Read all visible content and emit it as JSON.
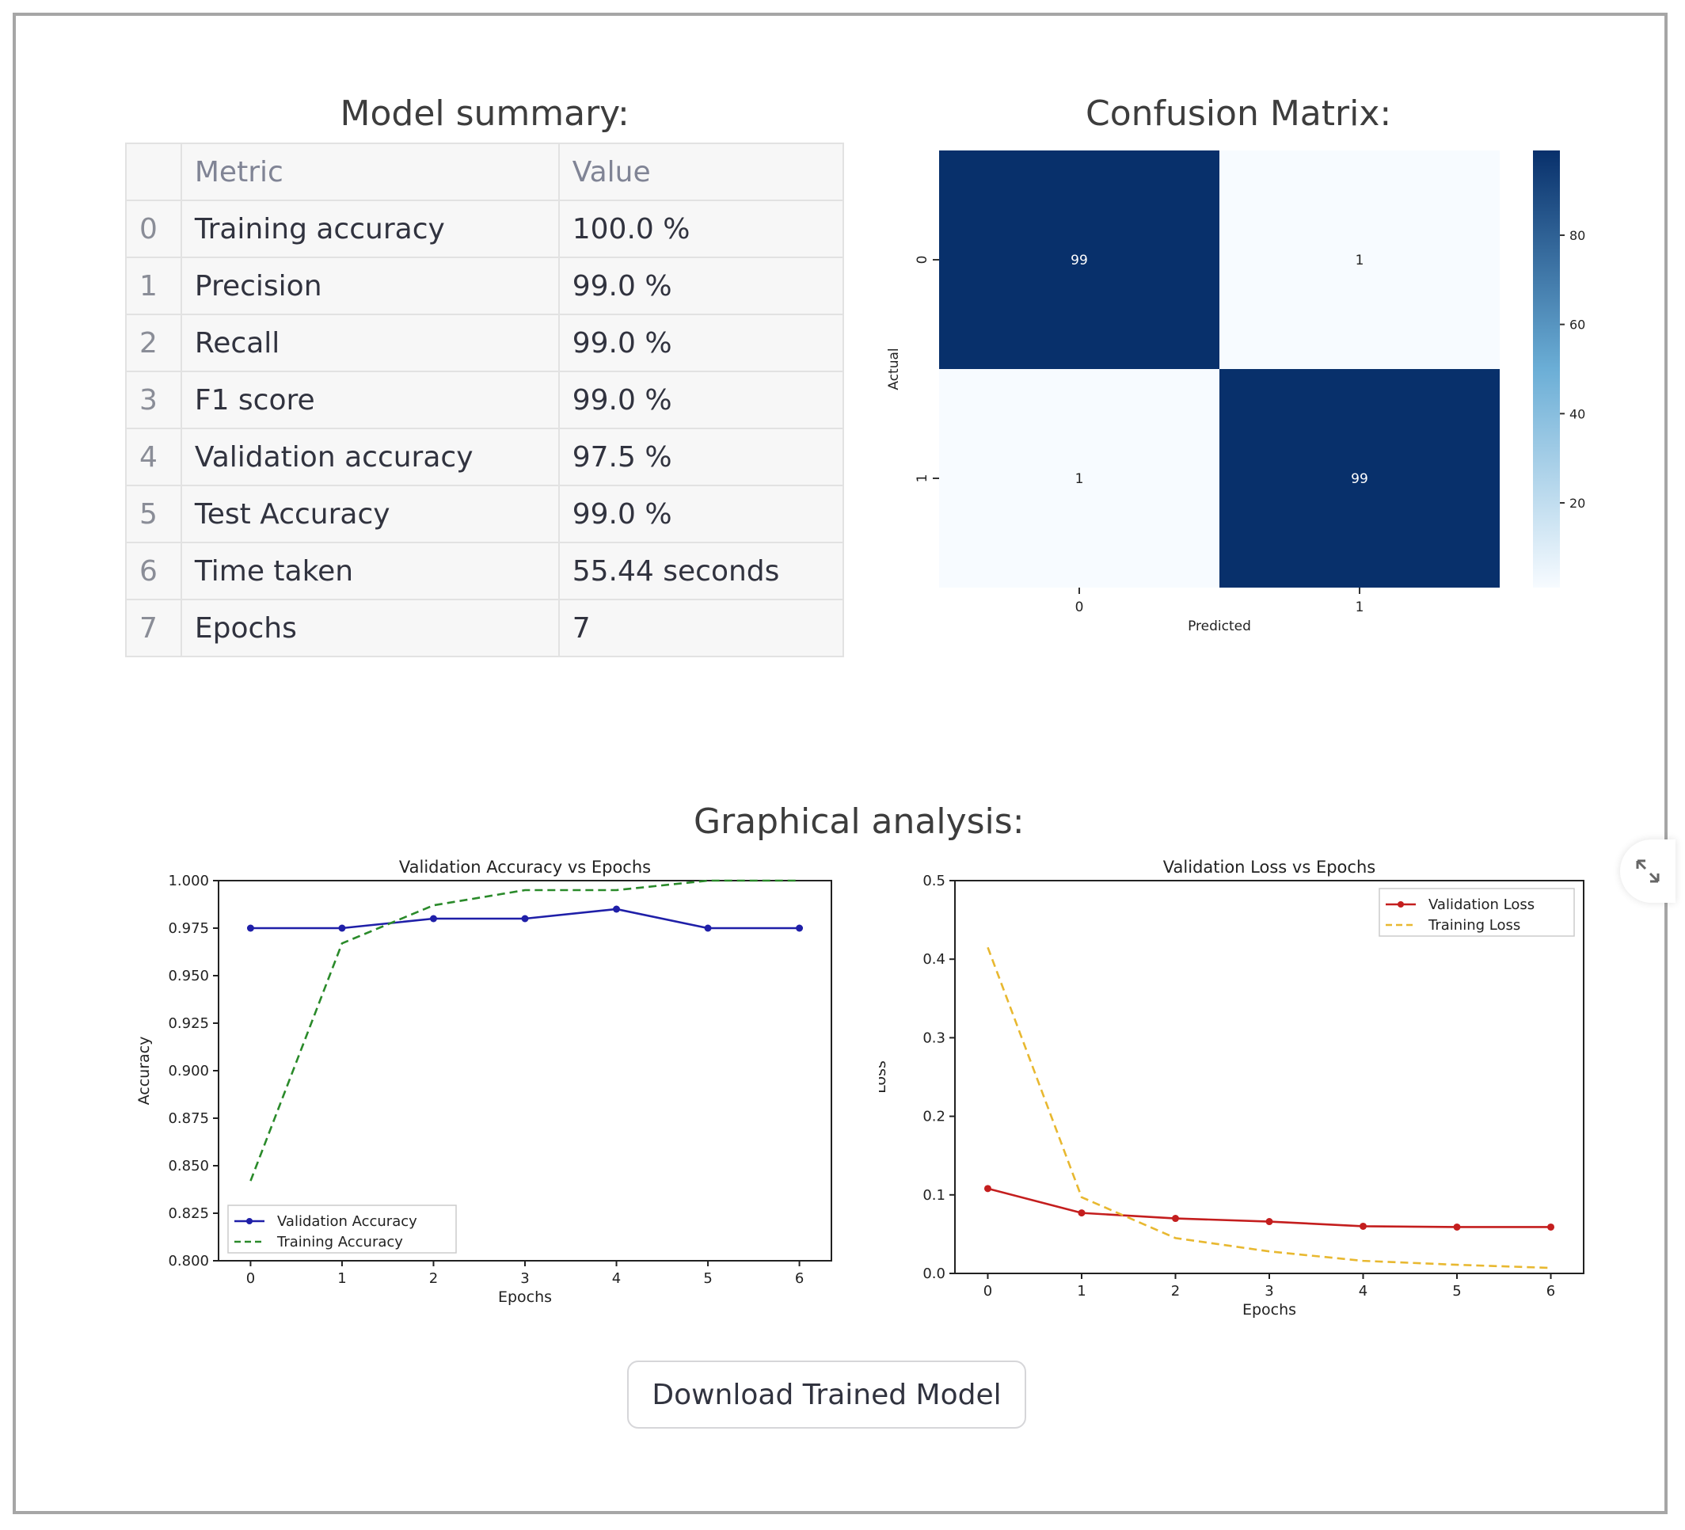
{
  "summary": {
    "title": "Model summary:",
    "columns": [
      "",
      "Metric",
      "Value"
    ],
    "rows": [
      {
        "index": "0",
        "metric": "Training accuracy",
        "value": "100.0 %"
      },
      {
        "index": "1",
        "metric": "Precision",
        "value": "99.0 %"
      },
      {
        "index": "2",
        "metric": "Recall",
        "value": "99.0 %"
      },
      {
        "index": "3",
        "metric": "F1 score",
        "value": "99.0 %"
      },
      {
        "index": "4",
        "metric": "Validation accuracy",
        "value": "97.5 %"
      },
      {
        "index": "5",
        "metric": "Test Accuracy",
        "value": "99.0 %"
      },
      {
        "index": "6",
        "metric": "Time taken",
        "value": "55.44 seconds"
      },
      {
        "index": "7",
        "metric": "Epochs",
        "value": "7"
      }
    ]
  },
  "confusion": {
    "title": "Confusion Matrix:"
  },
  "graphs": {
    "title": "Graphical analysis:"
  },
  "actions": {
    "download_label": "Download Trained Model",
    "expand_icon": "expand-icon"
  },
  "colors": {
    "heat_dark": "#08306b",
    "heat_light": "#f7fbff",
    "val_acc": "#1f1fa8",
    "train_acc": "#2a8a2a",
    "val_loss": "#c41e1e",
    "train_loss": "#e8b830"
  },
  "chart_data": [
    {
      "type": "heatmap",
      "title": "",
      "xlabel": "Predicted",
      "ylabel": "Actual",
      "x_ticks": [
        "0",
        "1"
      ],
      "y_ticks": [
        "0",
        "1"
      ],
      "values": [
        [
          99,
          1
        ],
        [
          1,
          99
        ]
      ],
      "colorbar_ticks": [
        "20",
        "40",
        "60",
        "80"
      ],
      "colorbar_range": [
        1,
        99
      ]
    },
    {
      "type": "line",
      "title": "Validation Accuracy vs Epochs",
      "xlabel": "Epochs",
      "ylabel": "Accuracy",
      "x": [
        0,
        1,
        2,
        3,
        4,
        5,
        6
      ],
      "ylim": [
        0.8,
        1.0
      ],
      "y_ticks": [
        "0.800",
        "0.825",
        "0.850",
        "0.875",
        "0.900",
        "0.925",
        "0.950",
        "0.975",
        "1.000"
      ],
      "legend": "lower-left",
      "series": [
        {
          "name": "Validation Accuracy",
          "values": [
            0.975,
            0.975,
            0.98,
            0.98,
            0.985,
            0.975,
            0.975
          ]
        },
        {
          "name": "Training Accuracy",
          "values": [
            0.842,
            0.967,
            0.987,
            0.995,
            0.995,
            1.0,
            1.0
          ]
        }
      ]
    },
    {
      "type": "line",
      "title": "Validation Loss vs Epochs",
      "xlabel": "Epochs",
      "ylabel": "Loss",
      "x": [
        0,
        1,
        2,
        3,
        4,
        5,
        6
      ],
      "ylim": [
        0.0,
        0.5
      ],
      "y_ticks": [
        "0.0",
        "0.1",
        "0.2",
        "0.3",
        "0.4",
        "0.5"
      ],
      "legend": "top-right",
      "series": [
        {
          "name": "Validation Loss",
          "values": [
            0.108,
            0.077,
            0.07,
            0.066,
            0.06,
            0.059,
            0.059
          ]
        },
        {
          "name": "Training Loss",
          "values": [
            0.415,
            0.097,
            0.045,
            0.028,
            0.016,
            0.011,
            0.007
          ]
        }
      ]
    }
  ]
}
